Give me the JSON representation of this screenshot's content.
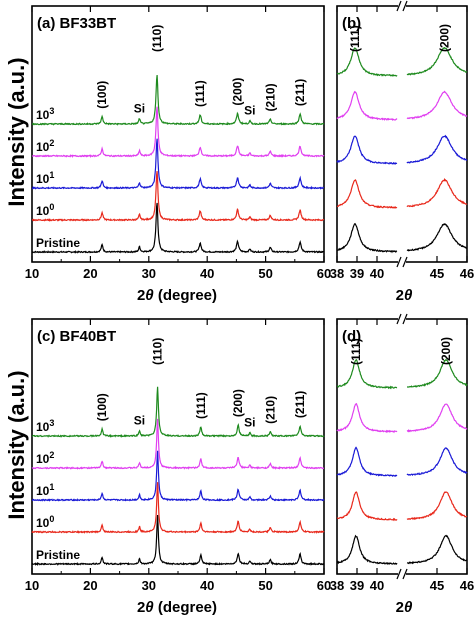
{
  "figure": {
    "y_axis_label": "Intensity (a.u.)",
    "x_label_prefix": "2",
    "x_label_theta": "θ",
    "x_label_suffix": " (degree)"
  },
  "colors": {
    "Pristine": "#000000",
    "10^0": "#e8291c",
    "10^1": "#1a1ad6",
    "10^2": "#e040f0",
    "10^3": "#1e8a1e"
  },
  "chart_data": [
    {
      "panel": "(a)",
      "title": "BF33BT",
      "type": "line",
      "xlim": [
        10,
        60
      ],
      "xticks": [
        10,
        20,
        30,
        40,
        50,
        60
      ],
      "series": [
        {
          "name": "Pristine",
          "sup": ""
        },
        {
          "name": "10",
          "sup": "0"
        },
        {
          "name": "10",
          "sup": "1"
        },
        {
          "name": "10",
          "sup": "2"
        },
        {
          "name": "10",
          "sup": "3"
        }
      ],
      "peaks": [
        {
          "x": 22.0,
          "h": 0.8,
          "w": 0.18
        },
        {
          "x": 28.4,
          "h": 0.6,
          "w": 0.15
        },
        {
          "x": 31.4,
          "h": 5.5,
          "w": 0.2
        },
        {
          "x": 38.8,
          "h": 1.0,
          "w": 0.2
        },
        {
          "x": 45.2,
          "h": 1.15,
          "w": 0.22
        },
        {
          "x": 47.3,
          "h": 0.35,
          "w": 0.15
        },
        {
          "x": 50.8,
          "h": 0.5,
          "w": 0.2
        },
        {
          "x": 55.9,
          "h": 1.1,
          "w": 0.22
        }
      ],
      "annotations": [
        {
          "text": "(100)",
          "x": 22.0
        },
        {
          "text": "Si",
          "x": 28.4
        },
        {
          "text": "(110)",
          "x": 31.4
        },
        {
          "text": "(111)",
          "x": 38.8
        },
        {
          "text": "(200)",
          "x": 45.2
        },
        {
          "text": "Si",
          "x": 47.3
        },
        {
          "text": "(210)",
          "x": 50.8
        },
        {
          "text": "(211)",
          "x": 55.9
        }
      ]
    },
    {
      "panel": "(b)",
      "type": "line",
      "xlim": [
        38,
        46
      ],
      "xticks": [
        38,
        39,
        40,
        45,
        46
      ],
      "axis_break": [
        41,
        44
      ],
      "peaks": [
        {
          "x": 38.9,
          "h": 1.0,
          "w": 0.25
        },
        {
          "x": 45.25,
          "h": 1.0,
          "w": 0.3
        }
      ],
      "annotations": [
        {
          "text": "(111)",
          "x": 38.9
        },
        {
          "text": "(200)",
          "x": 45.25
        }
      ]
    },
    {
      "panel": "(c)",
      "title": "BF40BT",
      "type": "line",
      "xlim": [
        10,
        60
      ],
      "xticks": [
        10,
        20,
        30,
        40,
        50,
        60
      ],
      "series": [
        {
          "name": "Pristine",
          "sup": ""
        },
        {
          "name": "10",
          "sup": "0"
        },
        {
          "name": "10",
          "sup": "1"
        },
        {
          "name": "10",
          "sup": "2"
        },
        {
          "name": "10",
          "sup": "3"
        }
      ],
      "peaks": [
        {
          "x": 22.0,
          "h": 0.75,
          "w": 0.16
        },
        {
          "x": 28.4,
          "h": 0.6,
          "w": 0.14
        },
        {
          "x": 31.5,
          "h": 5.5,
          "w": 0.18
        },
        {
          "x": 38.9,
          "h": 1.0,
          "w": 0.18
        },
        {
          "x": 45.3,
          "h": 1.2,
          "w": 0.2
        },
        {
          "x": 47.3,
          "h": 0.35,
          "w": 0.14
        },
        {
          "x": 50.8,
          "h": 0.45,
          "w": 0.18
        },
        {
          "x": 55.9,
          "h": 1.1,
          "w": 0.2
        }
      ],
      "annotations": [
        {
          "text": "(100)",
          "x": 22.0
        },
        {
          "text": "Si",
          "x": 28.4
        },
        {
          "text": "(110)",
          "x": 31.5
        },
        {
          "text": "(111)",
          "x": 38.9
        },
        {
          "text": "(200)",
          "x": 45.3
        },
        {
          "text": "Si",
          "x": 47.3
        },
        {
          "text": "(210)",
          "x": 50.8
        },
        {
          "text": "(211)",
          "x": 55.9
        }
      ]
    },
    {
      "panel": "(d)",
      "type": "line",
      "xlim": [
        38,
        46
      ],
      "xticks": [
        38,
        39,
        40,
        45,
        46
      ],
      "axis_break": [
        41,
        44
      ],
      "peaks": [
        {
          "x": 38.95,
          "h": 1.0,
          "w": 0.22
        },
        {
          "x": 45.3,
          "h": 1.0,
          "w": 0.25
        }
      ],
      "annotations": [
        {
          "text": "(111)",
          "x": 38.95
        },
        {
          "text": "(200)",
          "x": 45.3
        }
      ]
    }
  ]
}
